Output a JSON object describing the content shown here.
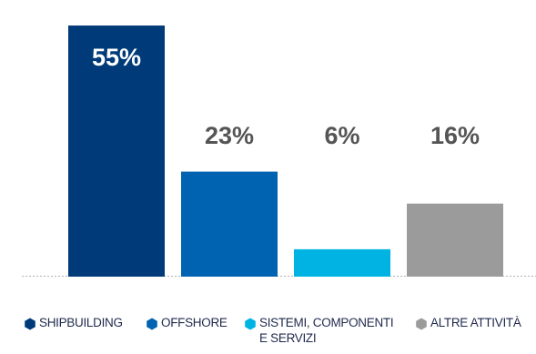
{
  "chart_data": {
    "type": "bar",
    "categories": [
      "SHIPBUILDING",
      "OFFSHORE",
      "SISTEMI, COMPONENTI\nE SERVIZI",
      "ALTRE ATTIVITÀ"
    ],
    "values": [
      55,
      23,
      6,
      16
    ],
    "value_labels": [
      "55%",
      "23%",
      "6%",
      "16%"
    ],
    "colors": [
      "#003a78",
      "#0063b2",
      "#00b3e3",
      "#9b9b9b"
    ],
    "label_colors": [
      "#ffffff",
      "#555555",
      "#555555",
      "#555555"
    ],
    "ylim": [
      0,
      58
    ],
    "grid": false,
    "baseline": "dashed",
    "legend_position": "bottom",
    "legend_marker": "hexagon"
  }
}
